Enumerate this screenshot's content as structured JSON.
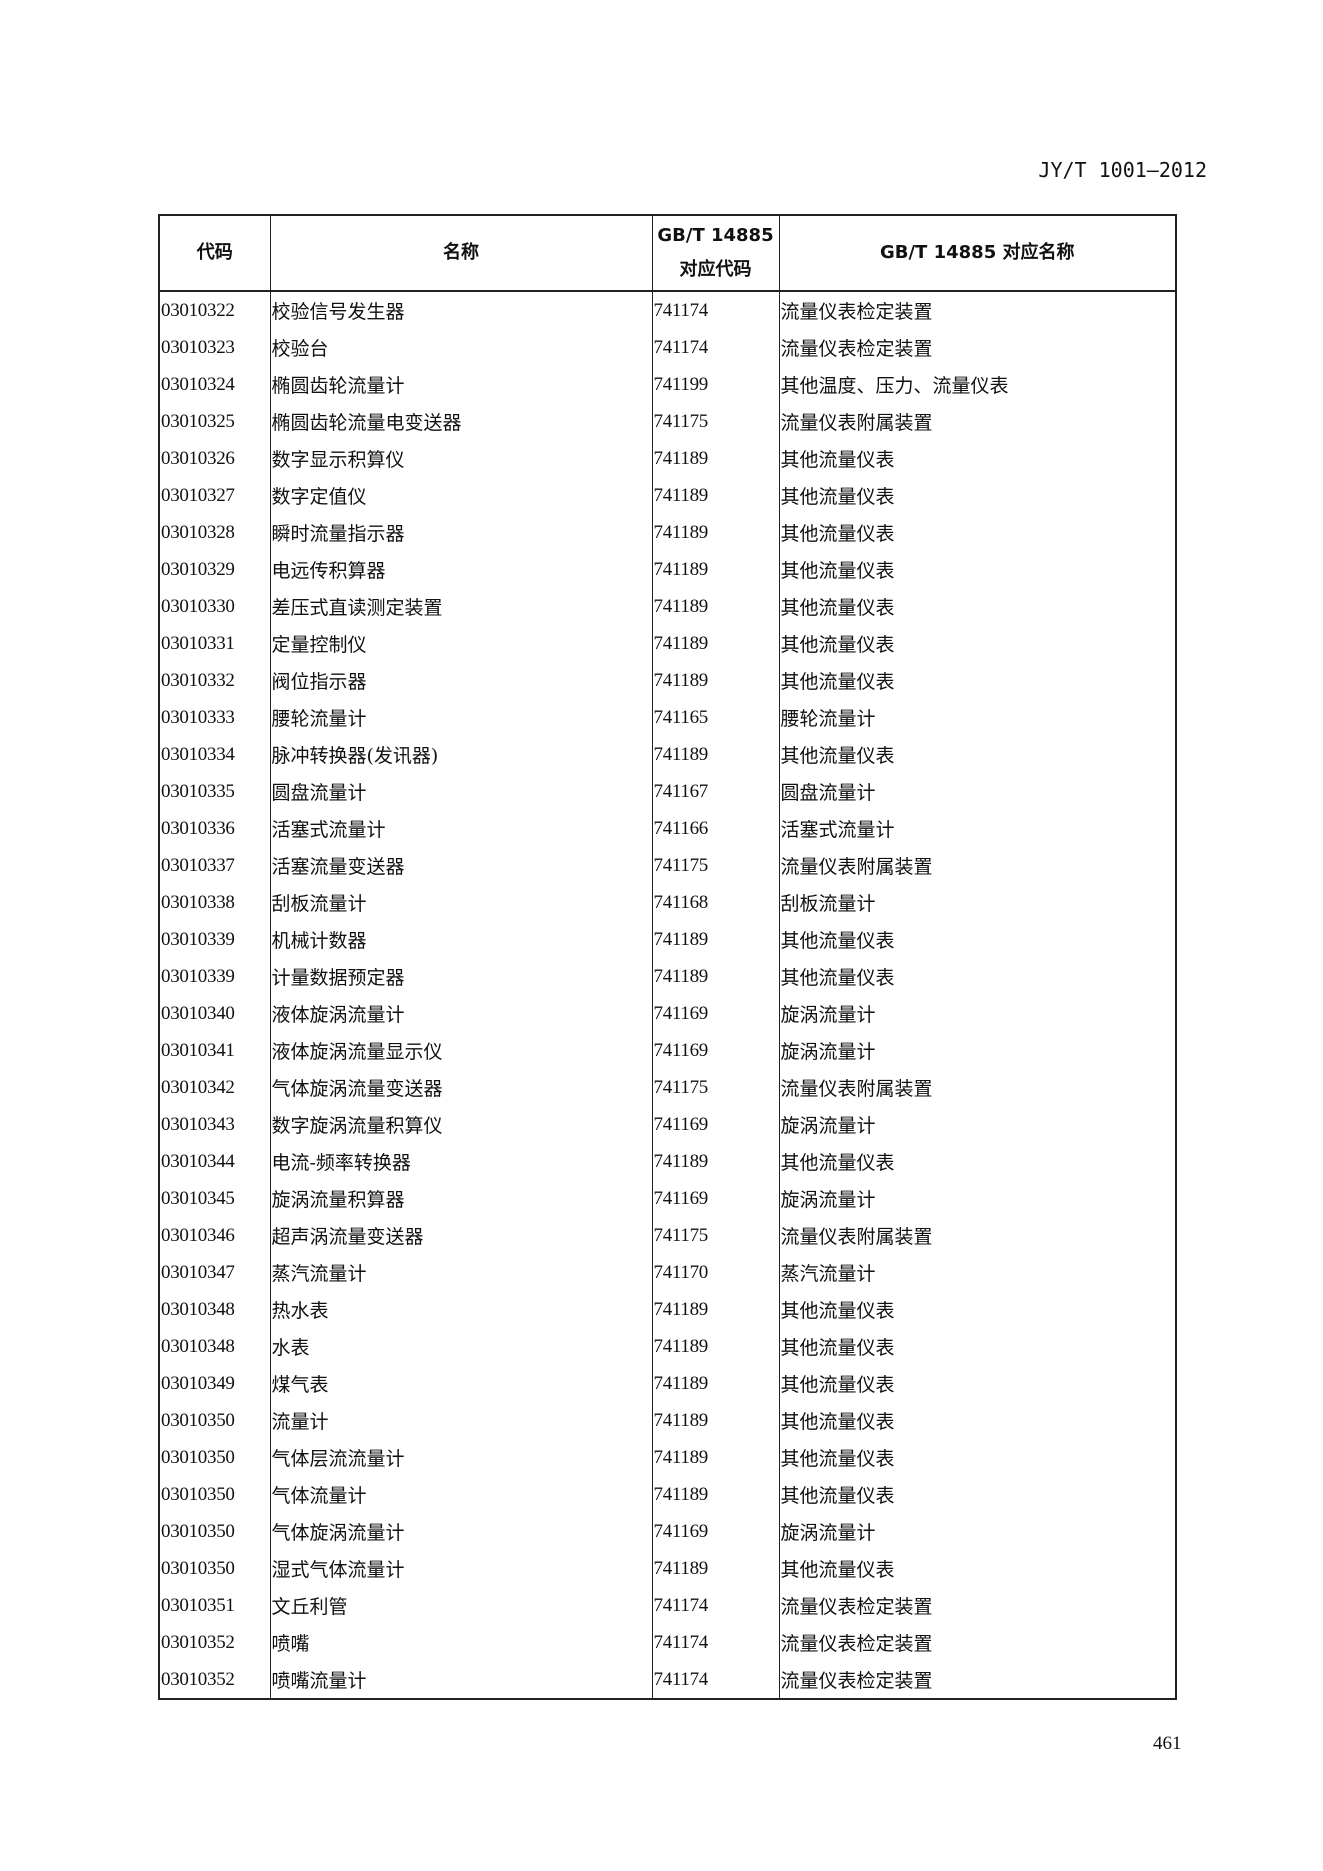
{
  "header": {
    "standard_code": "JY/T 1001—2012"
  },
  "table": {
    "columns": [
      "代码",
      "名称",
      "GB/T 14885\n对应代码",
      "GB/T 14885 对应名称"
    ],
    "column_lines": {
      "gb_code_line1": "GB/T 14885",
      "gb_code_line2": "对应代码"
    },
    "rows": [
      [
        "03010322",
        "校验信号发生器",
        "741174",
        "流量仪表检定装置"
      ],
      [
        "03010323",
        "校验台",
        "741174",
        "流量仪表检定装置"
      ],
      [
        "03010324",
        "椭圆齿轮流量计",
        "741199",
        "其他温度、压力、流量仪表"
      ],
      [
        "03010325",
        "椭圆齿轮流量电变送器",
        "741175",
        "流量仪表附属装置"
      ],
      [
        "03010326",
        "数字显示积算仪",
        "741189",
        "其他流量仪表"
      ],
      [
        "03010327",
        "数字定值仪",
        "741189",
        "其他流量仪表"
      ],
      [
        "03010328",
        "瞬时流量指示器",
        "741189",
        "其他流量仪表"
      ],
      [
        "03010329",
        "电远传积算器",
        "741189",
        "其他流量仪表"
      ],
      [
        "03010330",
        "差压式直读测定装置",
        "741189",
        "其他流量仪表"
      ],
      [
        "03010331",
        "定量控制仪",
        "741189",
        "其他流量仪表"
      ],
      [
        "03010332",
        "阀位指示器",
        "741189",
        "其他流量仪表"
      ],
      [
        "03010333",
        "腰轮流量计",
        "741165",
        "腰轮流量计"
      ],
      [
        "03010334",
        "脉冲转换器(发讯器)",
        "741189",
        "其他流量仪表"
      ],
      [
        "03010335",
        "圆盘流量计",
        "741167",
        "圆盘流量计"
      ],
      [
        "03010336",
        "活塞式流量计",
        "741166",
        "活塞式流量计"
      ],
      [
        "03010337",
        "活塞流量变送器",
        "741175",
        "流量仪表附属装置"
      ],
      [
        "03010338",
        "刮板流量计",
        "741168",
        "刮板流量计"
      ],
      [
        "03010339",
        "机械计数器",
        "741189",
        "其他流量仪表"
      ],
      [
        "03010339",
        "计量数据预定器",
        "741189",
        "其他流量仪表"
      ],
      [
        "03010340",
        "液体旋涡流量计",
        "741169",
        "旋涡流量计"
      ],
      [
        "03010341",
        "液体旋涡流量显示仪",
        "741169",
        "旋涡流量计"
      ],
      [
        "03010342",
        "气体旋涡流量变送器",
        "741175",
        "流量仪表附属装置"
      ],
      [
        "03010343",
        "数字旋涡流量积算仪",
        "741169",
        "旋涡流量计"
      ],
      [
        "03010344",
        "电流-频率转换器",
        "741189",
        "其他流量仪表"
      ],
      [
        "03010345",
        "旋涡流量积算器",
        "741169",
        "旋涡流量计"
      ],
      [
        "03010346",
        "超声涡流量变送器",
        "741175",
        "流量仪表附属装置"
      ],
      [
        "03010347",
        "蒸汽流量计",
        "741170",
        "蒸汽流量计"
      ],
      [
        "03010348",
        "热水表",
        "741189",
        "其他流量仪表"
      ],
      [
        "03010348",
        "水表",
        "741189",
        "其他流量仪表"
      ],
      [
        "03010349",
        "煤气表",
        "741189",
        "其他流量仪表"
      ],
      [
        "03010350",
        "流量计",
        "741189",
        "其他流量仪表"
      ],
      [
        "03010350",
        "气体层流流量计",
        "741189",
        "其他流量仪表"
      ],
      [
        "03010350",
        "气体流量计",
        "741189",
        "其他流量仪表"
      ],
      [
        "03010350",
        "气体旋涡流量计",
        "741169",
        "旋涡流量计"
      ],
      [
        "03010350",
        "湿式气体流量计",
        "741189",
        "其他流量仪表"
      ],
      [
        "03010351",
        "文丘利管",
        "741174",
        "流量仪表检定装置"
      ],
      [
        "03010352",
        "喷嘴",
        "741174",
        "流量仪表检定装置"
      ],
      [
        "03010352",
        "喷嘴流量计",
        "741174",
        "流量仪表检定装置"
      ]
    ]
  },
  "footer": {
    "page_number": "461"
  }
}
